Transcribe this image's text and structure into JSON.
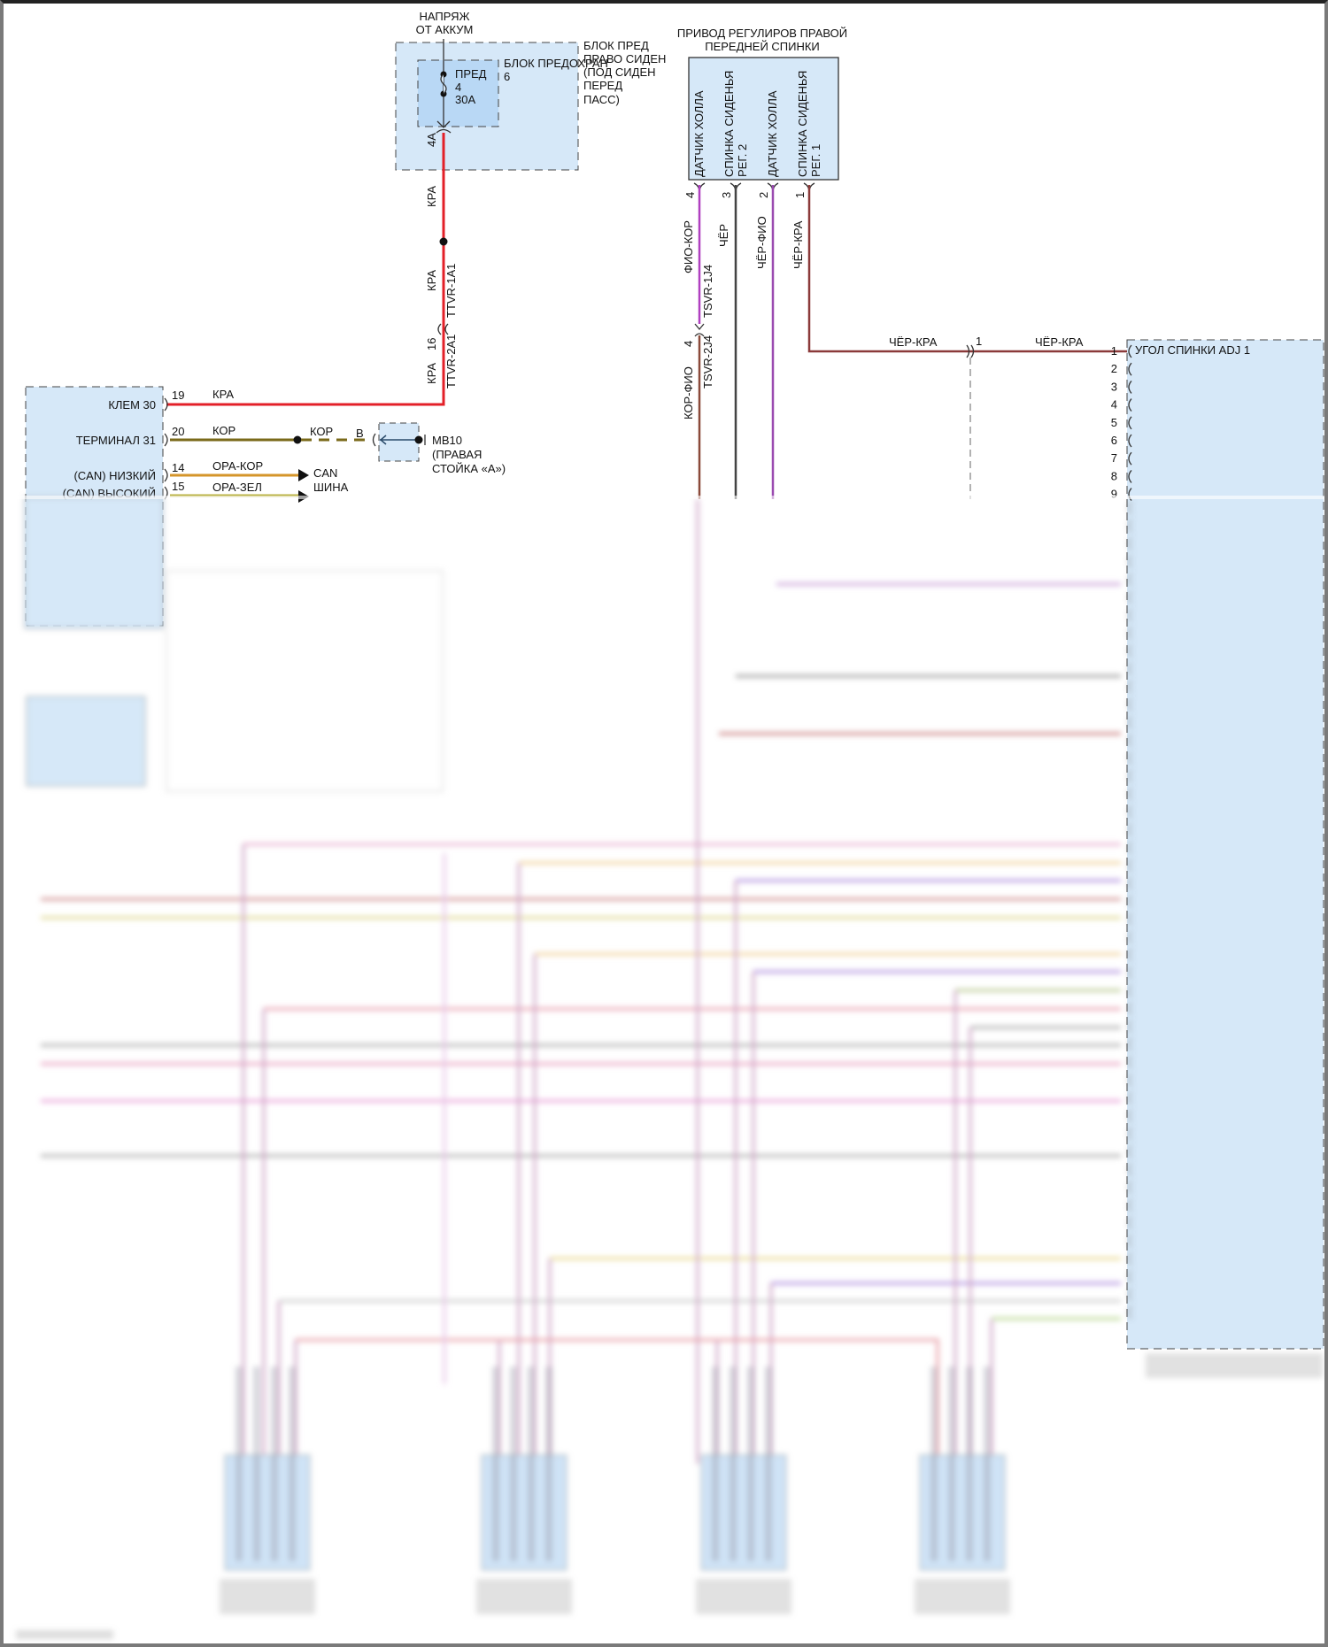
{
  "battery_feed": {
    "line1": "НАПРЯЖ",
    "line2": "ОТ АККУМ"
  },
  "fuse_block": {
    "outer_label": [
      "БЛОК ПРЕД",
      "ПРАВО СИДЕН",
      "(ПОД СИДЕН",
      "ПЕРЕД",
      "ПАСС)"
    ],
    "inner_label": "БЛОК ПРЕДОХРАН",
    "inner_number": "6",
    "fuse": {
      "name": "ПРЕД",
      "number": "4",
      "rating": "30A"
    },
    "pin": "4A"
  },
  "red_wire": {
    "color_code_upper": "КРА",
    "color_code_mid": "КРА",
    "color_code_lower": "КРА",
    "connector_upper": "TTVR-1A1",
    "connector_lower": "TTVR-2A1",
    "connector_pin": "16"
  },
  "actuator": {
    "title_line1": "ПРИВОД РЕГУЛИРОВ ПРАВОЙ",
    "title_line2": "ПЕРЕДНЕЙ СПИНКИ",
    "pins": [
      {
        "pin": "4",
        "label1": "ДАТЧИК ХОЛЛА",
        "label2": "",
        "wire": "ФИО-КОР"
      },
      {
        "pin": "3",
        "label1": "СПИНКА СИДЕНЬЯ",
        "label2": "РЕГ. 2",
        "wire": "ЧЁР"
      },
      {
        "pin": "2",
        "label1": "ДАТЧИК ХОЛЛА",
        "label2": "",
        "wire": "ЧЁР-ФИО"
      },
      {
        "pin": "1",
        "label1": "СПИНКА СИДЕНЬЯ",
        "label2": "РЕГ. 1",
        "wire": "ЧЁР-КРА"
      }
    ],
    "inline_connector_upper": "TSVR-1J4",
    "inline_connector_lower": "TSVR-2J4",
    "inline_pin": "4",
    "lower_wire": "КОР-ФИО"
  },
  "seat_back_wire": {
    "left_label": "ЧЁР-КРА",
    "splice_pin": "1",
    "right_label": "ЧЁР-КРА",
    "module_pin": "1"
  },
  "right_module": {
    "first_label": "УГОЛ СПИНКИ ADJ 1",
    "pins": [
      "1",
      "2",
      "3",
      "4",
      "5",
      "6",
      "7",
      "8",
      "9"
    ]
  },
  "left_module": {
    "rows": [
      {
        "label": "КЛЕМ 30",
        "pin": "19",
        "wire": "КРА"
      },
      {
        "label": "ТЕРМИНАЛ 31",
        "pin": "20",
        "wire": "КОР"
      },
      {
        "label": "(CAN) НИЗКИЙ",
        "pin": "14",
        "wire": "ОРА-КОР"
      },
      {
        "label": "(CAN) ВЫСОКИЙ",
        "pin": "15",
        "wire": "ОРА-ЗЕЛ"
      }
    ],
    "ground_wire": "КОР",
    "ground_pin": "B",
    "ground_point": [
      "MB10",
      "(ПРАВАЯ",
      "СТОЙКА «А»)"
    ],
    "can_bus": [
      "CAN",
      "ШИНА"
    ]
  },
  "colors": {
    "red": "#e32028",
    "brown_red": "#8b3a3a",
    "violet": "#a040c0",
    "black": "#444444",
    "olive": "#7a6a1a",
    "orange": "#d4952a",
    "module_fill": "#d6e8f8"
  }
}
